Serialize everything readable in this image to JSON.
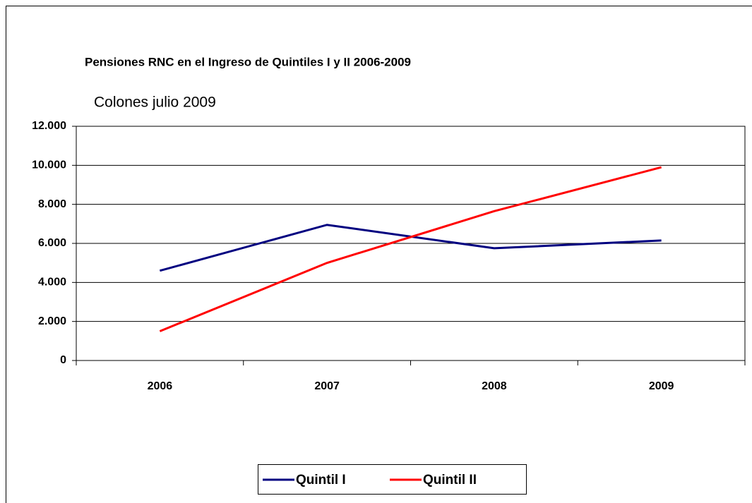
{
  "chart_data": {
    "type": "line",
    "title": "Pensiones RNC en el Ingreso de Quintiles  I y II 2006-2009",
    "subtitle": "Colones julio 2009",
    "categories": [
      "2006",
      "2007",
      "2008",
      "2009"
    ],
    "series": [
      {
        "name": "Quintil I",
        "color": "#000080",
        "values": [
          4600,
          6950,
          5750,
          6150
        ]
      },
      {
        "name": "Quintil II",
        "color": "#ff0000",
        "values": [
          1500,
          5000,
          7650,
          9900
        ]
      }
    ],
    "ylim": [
      0,
      12000
    ],
    "yticks": [
      0,
      {
        "value": 2000,
        "label": "2.000"
      },
      {
        "value": 4000,
        "label": "4.000"
      },
      {
        "value": 6000,
        "label": "6.000"
      },
      {
        "value": 8000,
        "label": "8.000"
      },
      {
        "value": 10000,
        "label": "10.000"
      },
      {
        "value": 12000,
        "label": "12.000"
      }
    ],
    "grid": true,
    "legend": "bottom"
  }
}
